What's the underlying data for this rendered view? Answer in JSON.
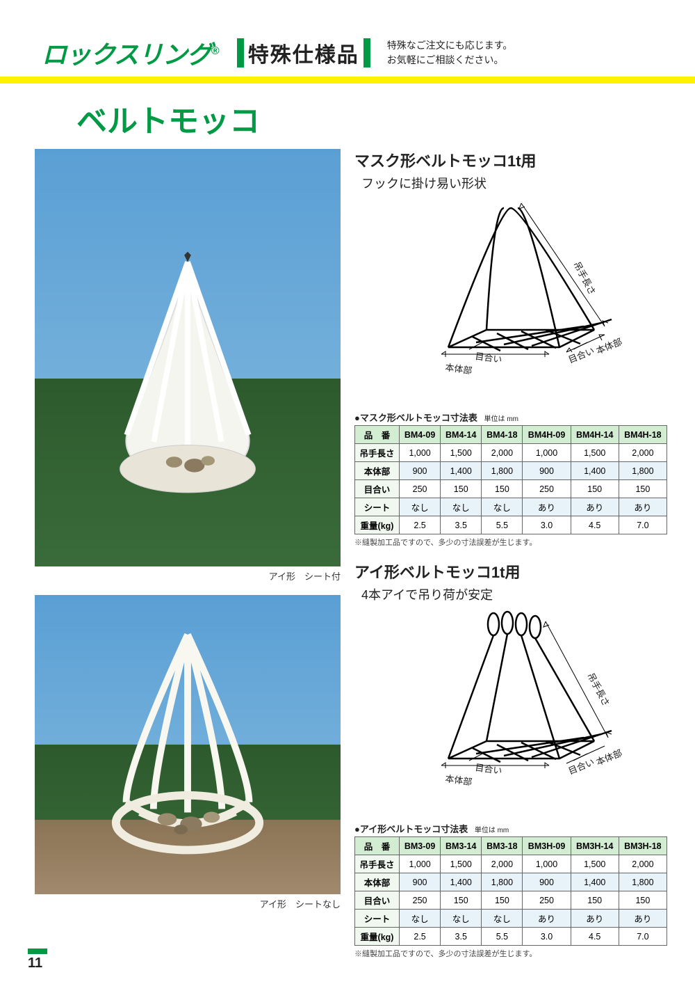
{
  "header": {
    "logo_text": "ロックスリング",
    "logo_reg": "®",
    "badge": "特殊仕様品",
    "tagline1": "特殊なご注文にも応じます。",
    "tagline2": "お気軽にご相談ください。"
  },
  "colors": {
    "brand_green": "#009944",
    "accent_yellow": "#fff100",
    "table_header_bg": "#d3edd3",
    "table_rowhead_bg": "#f0f8f0",
    "table_alt_bg": "#e8f2f9",
    "border": "#666666",
    "text": "#222222"
  },
  "section_title": "ベルトモッコ",
  "photos": {
    "caption1": "アイ形　シート付",
    "caption2": "アイ形　シートなし"
  },
  "product1": {
    "title": "マスク形ベルトモッコ1t用",
    "subtitle": "フックに掛け易い形状",
    "dim_labels": {
      "tsurite": "吊手長さ",
      "hontai": "本体部",
      "meai": "目合い"
    },
    "table_title": "●マスク形ベルトモッコ寸法表",
    "unit": "単位は mm",
    "note": "※縫製加工品ですので、多少の寸法誤差が生じます。",
    "columns": [
      "品　番",
      "BM4-09",
      "BM4-14",
      "BM4-18",
      "BM4H-09",
      "BM4H-14",
      "BM4H-18"
    ],
    "rows": [
      {
        "label": "吊手長さ",
        "cells": [
          "1,000",
          "1,500",
          "2,000",
          "1,000",
          "1,500",
          "2,000"
        ],
        "alt": false
      },
      {
        "label": "本体部",
        "cells": [
          "900",
          "1,400",
          "1,800",
          "900",
          "1,400",
          "1,800"
        ],
        "alt": true
      },
      {
        "label": "目合い",
        "cells": [
          "250",
          "150",
          "150",
          "250",
          "150",
          "150"
        ],
        "alt": false
      },
      {
        "label": "シート",
        "cells": [
          "なし",
          "なし",
          "なし",
          "あり",
          "あり",
          "あり"
        ],
        "alt": true
      },
      {
        "label": "重量(kg)",
        "cells": [
          "2.5",
          "3.5",
          "5.5",
          "3.0",
          "4.5",
          "7.0"
        ],
        "alt": false
      }
    ]
  },
  "product2": {
    "title": "アイ形ベルトモッコ1t用",
    "subtitle": "4本アイで吊り荷が安定",
    "dim_labels": {
      "tsurite": "吊手長さ",
      "hontai": "本体部",
      "meai": "目合い"
    },
    "table_title": "●アイ形ベルトモッコ寸法表",
    "unit": "単位は mm",
    "note": "※縫製加工品ですので、多少の寸法誤差が生じます。",
    "columns": [
      "品　番",
      "BM3-09",
      "BM3-14",
      "BM3-18",
      "BM3H-09",
      "BM3H-14",
      "BM3H-18"
    ],
    "rows": [
      {
        "label": "吊手長さ",
        "cells": [
          "1,000",
          "1,500",
          "2,000",
          "1,000",
          "1,500",
          "2,000"
        ],
        "alt": false
      },
      {
        "label": "本体部",
        "cells": [
          "900",
          "1,400",
          "1,800",
          "900",
          "1,400",
          "1,800"
        ],
        "alt": true
      },
      {
        "label": "目合い",
        "cells": [
          "250",
          "150",
          "150",
          "250",
          "150",
          "150"
        ],
        "alt": false
      },
      {
        "label": "シート",
        "cells": [
          "なし",
          "なし",
          "なし",
          "あり",
          "あり",
          "あり"
        ],
        "alt": true
      },
      {
        "label": "重量(kg)",
        "cells": [
          "2.5",
          "3.5",
          "5.5",
          "3.0",
          "4.5",
          "7.0"
        ],
        "alt": false
      }
    ]
  },
  "page_number": "11"
}
